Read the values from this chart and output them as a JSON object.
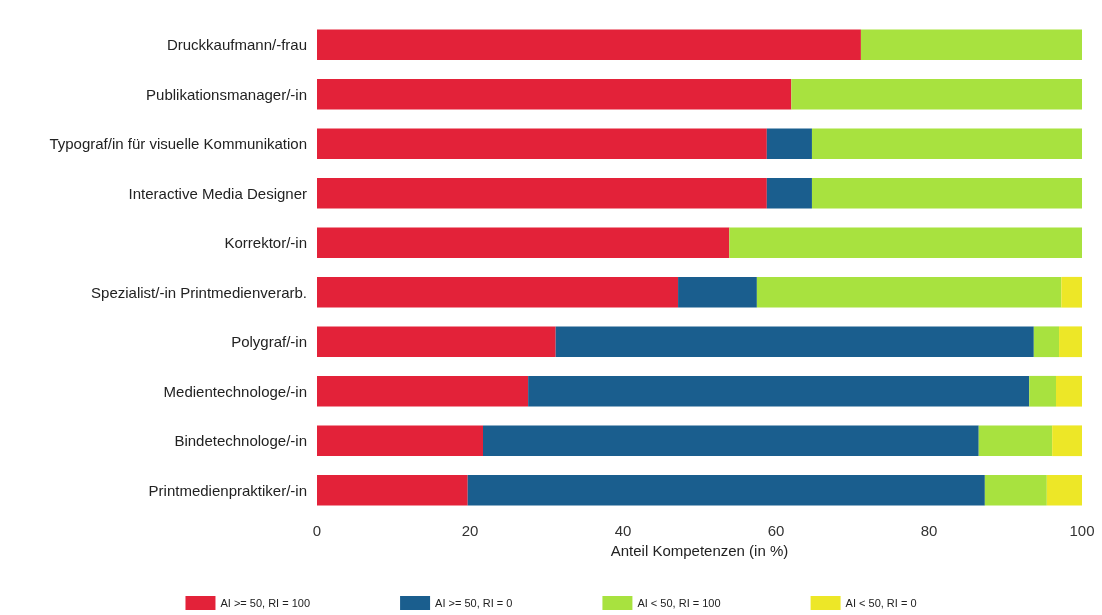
{
  "chart_data": {
    "type": "bar",
    "orientation": "horizontal",
    "stacked": true,
    "xlabel": "Anteil Kompetenzen (in %)",
    "categories": [
      "Druckkaufmann/-frau",
      "Publikationsmanager/-in",
      "Typograf/in für visuelle Kommunikation",
      "Interactive Media Designer",
      "Korrektor/-in",
      "Spezialist/-in Printmedienverarb.",
      "Polygraf/-in",
      "Medientechnologe/-in",
      "Bindetechnologe/-in",
      "Printmedienpraktiker/-in"
    ],
    "series": [
      {
        "name": "AI >= 50, RI = 100",
        "color": "#e32239",
        "values": [
          71.1,
          62,
          58.8,
          58.8,
          53.9,
          47.2,
          31.2,
          27.6,
          21.7,
          19.7
        ]
      },
      {
        "name": "AI >= 50, RI = 0",
        "color": "#1a5e8e",
        "values": [
          0,
          0,
          5.9,
          5.9,
          0,
          10.3,
          62.5,
          65.5,
          64.8,
          67.6
        ]
      },
      {
        "name": "AI < 50, RI = 100",
        "color": "#a8e23f",
        "values": [
          28.9,
          38,
          35.3,
          35.3,
          46.1,
          39.8,
          3.3,
          3.5,
          9.6,
          8.1
        ]
      },
      {
        "name": "AI < 50, RI = 0",
        "color": "#ede727",
        "values": [
          0,
          0,
          0,
          0,
          0,
          2.7,
          3.0,
          3.4,
          3.9,
          4.6
        ]
      }
    ],
    "xlim": [
      0,
      100
    ],
    "xticks": [
      0,
      20,
      40,
      60,
      80,
      100
    ],
    "grid": false,
    "legend": "bottom"
  }
}
